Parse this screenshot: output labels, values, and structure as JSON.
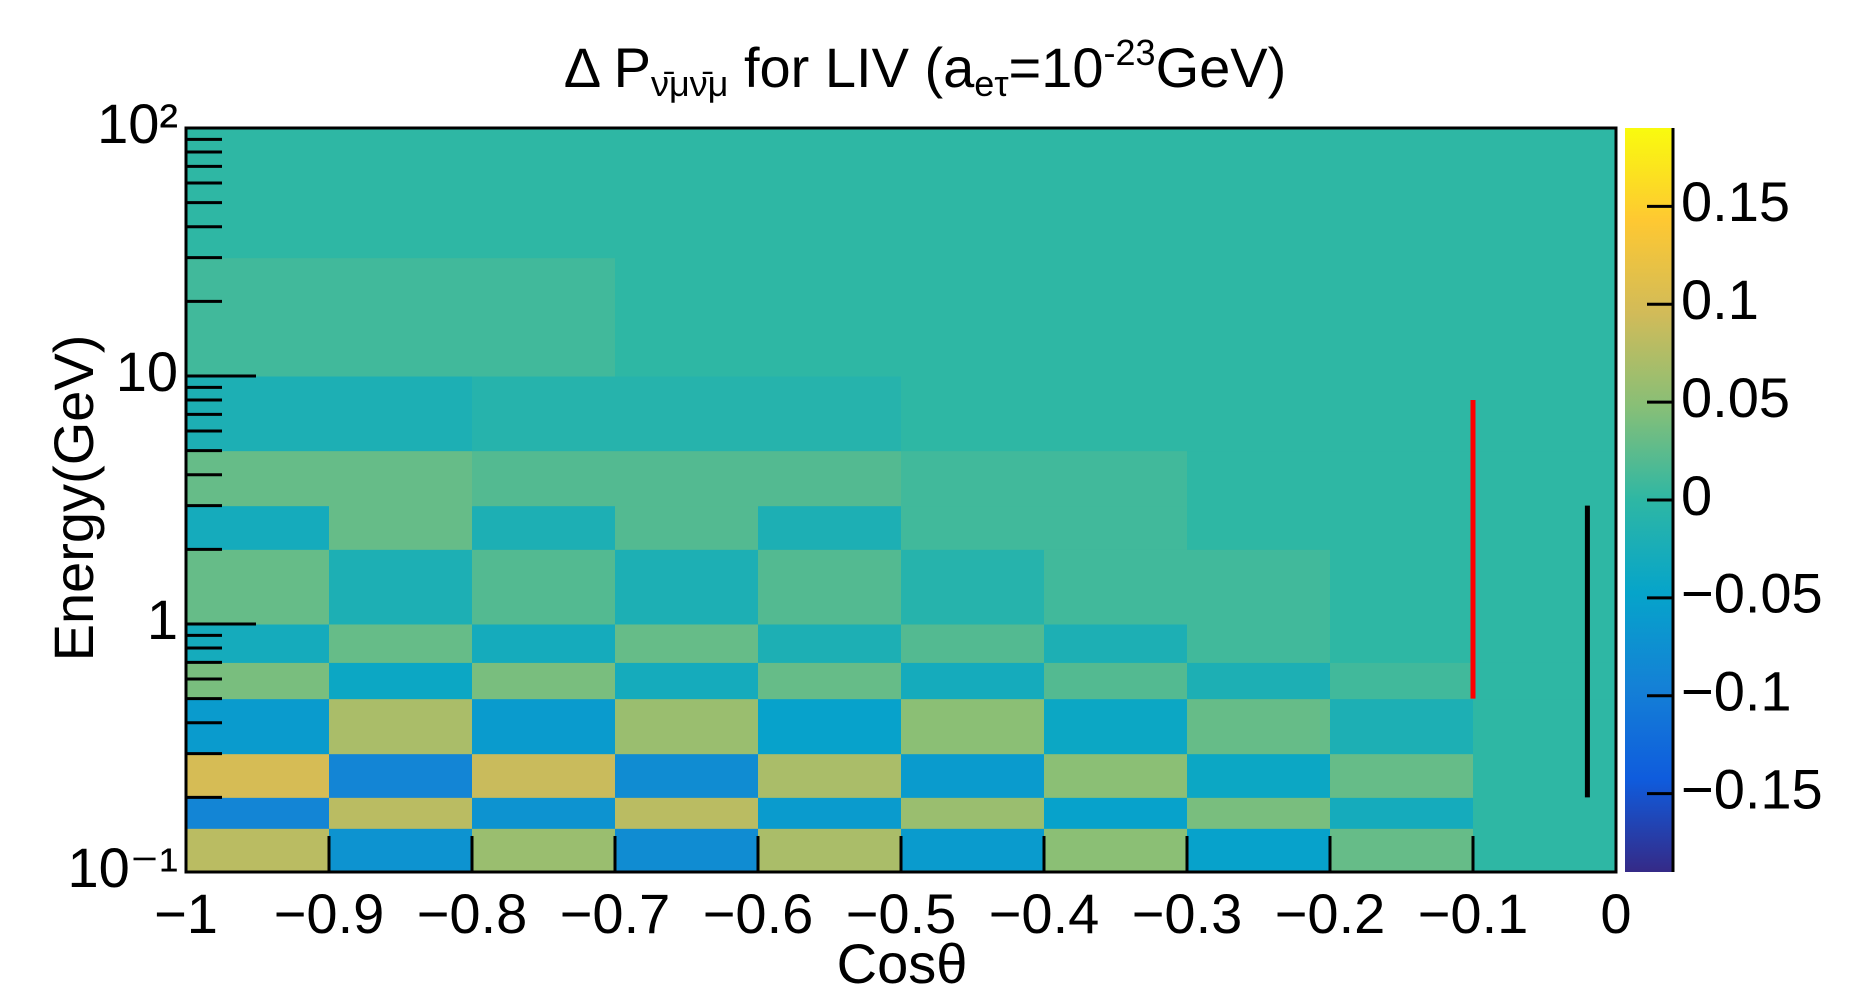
{
  "chart_data": {
    "type": "heatmap",
    "title_parts": [
      {
        "text": "Δ P",
        "shift": "none"
      },
      {
        "text": "ν̄μν̄μ",
        "shift": "sub"
      },
      {
        "text": " for LIV (a",
        "shift": "none"
      },
      {
        "text": "eτ",
        "shift": "sub"
      },
      {
        "text": "=10",
        "shift": "none"
      },
      {
        "text": "-23",
        "shift": "super"
      },
      {
        "text": "GeV)",
        "shift": "none"
      }
    ],
    "x_label": "Cosθ",
    "y_label": "Energy(GeV)",
    "xlim": [
      -1,
      0
    ],
    "xticks": [
      {
        "value": -1,
        "label": "−1"
      },
      {
        "value": -0.9,
        "label": "−0.9"
      },
      {
        "value": -0.8,
        "label": "−0.8"
      },
      {
        "value": -0.7,
        "label": "−0.7"
      },
      {
        "value": -0.6,
        "label": "−0.6"
      },
      {
        "value": -0.5,
        "label": "−0.5"
      },
      {
        "value": -0.4,
        "label": "−0.4"
      },
      {
        "value": -0.3,
        "label": "−0.3"
      },
      {
        "value": -0.2,
        "label": "−0.2"
      },
      {
        "value": -0.1,
        "label": "−0.1"
      },
      0
    ],
    "ylim": [
      0.1,
      100
    ],
    "y_log": true,
    "yticks": [
      {
        "value": 0.1,
        "label": "10⁻¹"
      },
      1,
      10,
      {
        "value": 100,
        "label": "10²"
      }
    ],
    "yminorticks": [
      0.2,
      0.3,
      0.4,
      0.5,
      0.6,
      0.7,
      0.8,
      0.9,
      2,
      3,
      4,
      5,
      6,
      7,
      8,
      9,
      20,
      30,
      40,
      50,
      60,
      70,
      80,
      90
    ],
    "zlim": [
      -0.19,
      0.19
    ],
    "zticks": [
      {
        "value": -0.15,
        "label": "−0.15"
      },
      {
        "value": -0.1,
        "label": "−0.1"
      },
      {
        "value": -0.05,
        "label": "−0.05"
      },
      0,
      0.05,
      0.1,
      0.15
    ],
    "colormap": [
      "#352a87",
      "#0f5cdd",
      "#1481d6",
      "#06a4ca",
      "#2eb7a4",
      "#87bf77",
      "#d1bb59",
      "#fec832",
      "#f9fb0e"
    ],
    "x_edges": [
      -1,
      -0.9,
      -0.8,
      -0.7,
      -0.6,
      -0.5,
      -0.4,
      -0.3,
      -0.2,
      -0.1,
      0
    ],
    "y_edges": [
      0.1,
      0.15,
      0.2,
      0.3,
      0.5,
      0.7,
      1,
      2,
      3,
      5,
      10,
      30,
      100
    ],
    "z": [
      [
        0.08,
        -0.07,
        0.06,
        -0.08,
        0.07,
        -0.06,
        0.05,
        -0.05,
        0.03,
        0
      ],
      [
        -0.09,
        0.08,
        -0.07,
        0.08,
        -0.06,
        0.06,
        -0.05,
        0.04,
        -0.03,
        0
      ],
      [
        0.1,
        -0.09,
        0.09,
        -0.08,
        0.07,
        -0.06,
        0.05,
        -0.04,
        0.03,
        0
      ],
      [
        -0.06,
        0.07,
        -0.06,
        0.06,
        -0.05,
        0.05,
        -0.04,
        0.03,
        -0.02,
        0
      ],
      [
        0.04,
        -0.04,
        0.04,
        -0.03,
        0.03,
        -0.03,
        0.02,
        -0.02,
        0.01,
        0
      ],
      [
        -0.03,
        0.03,
        -0.03,
        0.03,
        -0.02,
        0.02,
        -0.02,
        0.01,
        0,
        0
      ],
      [
        0.03,
        -0.02,
        0.02,
        -0.02,
        0.02,
        -0.01,
        0.01,
        0.01,
        0,
        0
      ],
      [
        -0.03,
        0.03,
        -0.02,
        0.02,
        -0.02,
        0.01,
        0.01,
        0,
        0,
        0
      ],
      [
        0.03,
        0.03,
        0.02,
        0.02,
        0.02,
        0.01,
        0.01,
        0,
        0,
        0
      ],
      [
        -0.02,
        -0.02,
        -0.01,
        -0.01,
        -0.01,
        0,
        0,
        0,
        0,
        0
      ],
      [
        0.01,
        0.01,
        0.01,
        0,
        0,
        0,
        0,
        0,
        0,
        0
      ],
      [
        0,
        0,
        0,
        0,
        0,
        0,
        0,
        0,
        0,
        0
      ]
    ],
    "lines": [
      {
        "x": -0.1,
        "y": [
          0.5,
          8
        ],
        "color": "#ff0000"
      },
      {
        "x": -0.02,
        "y": [
          0.2,
          3
        ],
        "color": "#000000"
      }
    ]
  }
}
